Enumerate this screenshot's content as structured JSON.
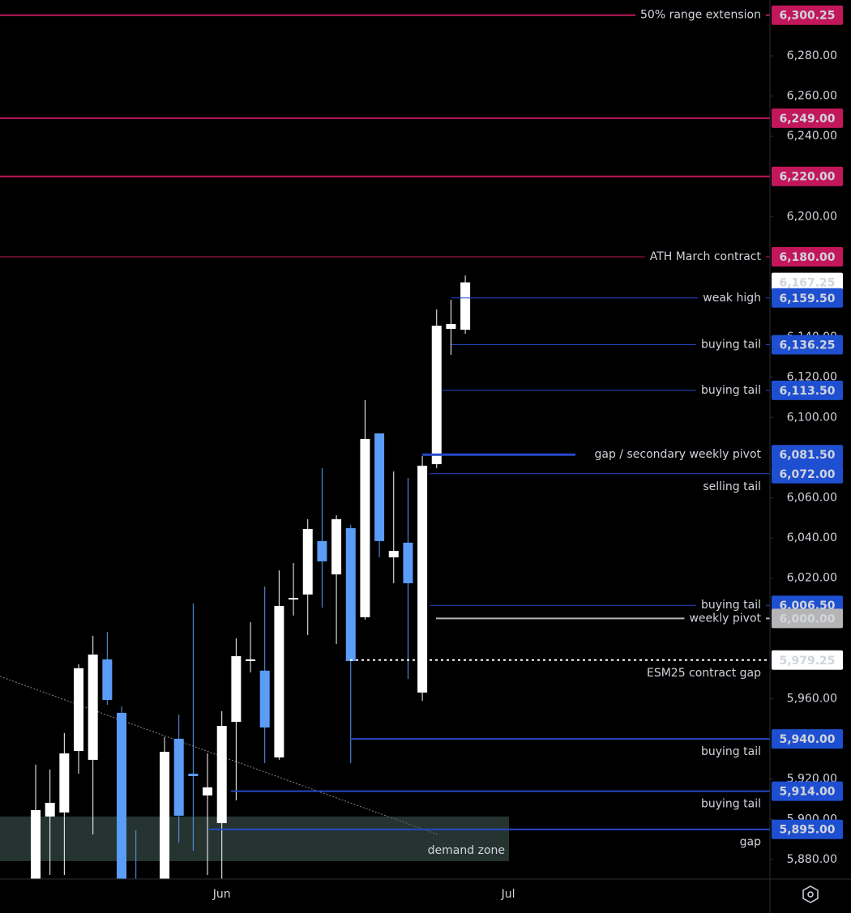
{
  "chart_data": {
    "type": "candlestick",
    "categories": [
      null,
      null,
      null,
      null,
      null,
      null,
      null,
      null,
      null,
      null,
      null,
      null,
      null,
      "Jun",
      null,
      null,
      null,
      null,
      null,
      null,
      null,
      null,
      null,
      null,
      null,
      null,
      null,
      null,
      null,
      null,
      null,
      null,
      null,
      "Jul"
    ],
    "open": [
      5865,
      5901.4,
      5903.4,
      5934.0,
      5929.6,
      5979.6,
      5953.0,
      5870,
      null,
      5860,
      5940.1,
      5922.7,
      5911.9,
      5898.1,
      5948.5,
      5978.8,
      5974.0,
      5930.8,
      6009.4,
      6011.9,
      6038.5,
      6021.9,
      6044.9,
      6000.6,
      6092.1,
      6030.4,
      6037.7,
      5963.1,
      6076.8,
      6144.1,
      6143.7,
      null,
      null,
      null
    ],
    "high": [
      5927.2,
      5924.8,
      5942.9,
      5977.2,
      5991.3,
      5993.3,
      5956.2,
      5894.6,
      null,
      5940.9,
      5952.2,
      6007.4,
      5932.8,
      5953.8,
      5990.1,
      5998.1,
      6015.9,
      6023.9,
      6027.6,
      6049.4,
      6074.8,
      6051.4,
      6046.5,
      6108.6,
      6092.1,
      6073.1,
      6069.9,
      6080.8,
      6153.8,
      6158.6,
      6170.7,
      null,
      null,
      null
    ],
    "low": [
      5850,
      5872.3,
      5872.3,
      5922.7,
      5892.5,
      5957.0,
      5850,
      5850,
      null,
      5850,
      5888.5,
      5884.4,
      5872.3,
      5860,
      5909.4,
      5973.1,
      5928.0,
      5929.6,
      6001.4,
      5991.7,
      6005.4,
      5987.3,
      5928.0,
      5999.4,
      6030.4,
      6017.5,
      5969.9,
      5959.0,
      6074.8,
      6131.2,
      6141.7,
      null,
      null,
      null
    ],
    "close": [
      5904.6,
      5908.2,
      5932.8,
      5975.2,
      5982.0,
      5959.4,
      5860,
      5855,
      null,
      5933.6,
      5901.8,
      5921.5,
      5915.9,
      5946.5,
      5981.2,
      5979.6,
      5945.7,
      6006.2,
      6010.2,
      6044.5,
      6028.4,
      6049.4,
      5978.8,
      6089.3,
      6038.5,
      6033.6,
      6017.5,
      6076.0,
      6145.7,
      6146.5,
      6167.25,
      null,
      null,
      null
    ],
    "up_color": "#ffffff",
    "down_color": "#5b9cf6",
    "ylim": [
      5870.3,
      6307.8
    ],
    "yticks": [
      {
        "value": 6280,
        "label": "6,280.00"
      },
      {
        "value": 6260,
        "label": "6,260.00"
      },
      {
        "value": 6240,
        "label": "6,240.00"
      },
      {
        "value": 6200,
        "label": "6,200.00"
      },
      {
        "value": 6140,
        "label": "6,140.00"
      },
      {
        "value": 6120,
        "label": "6,120.00"
      },
      {
        "value": 6100,
        "label": "6,100.00"
      },
      {
        "value": 6060,
        "label": "6,060.00"
      },
      {
        "value": 6040,
        "label": "6,040.00"
      },
      {
        "value": 6020,
        "label": "6,020.00"
      },
      {
        "value": 5960,
        "label": "5,960.00"
      },
      {
        "value": 5920,
        "label": "5,920.00"
      },
      {
        "value": 5900,
        "label": "5,900.00"
      },
      {
        "value": 5880,
        "label": "5,880.00"
      }
    ],
    "levels": [
      {
        "label": "50% range extension",
        "value": 6300.25,
        "value_label": "6,300.25",
        "color": "#c2185b"
      },
      {
        "value": 6249,
        "value_label": "6,249.00",
        "color": "#c2185b"
      },
      {
        "value": 6220,
        "value_label": "6,220.00",
        "color": "#c2185b"
      },
      {
        "label": "ATH March contract",
        "value": 6180,
        "value_label": "6,180.00",
        "color": "#c2185b"
      },
      {
        "value": 6167.25,
        "value_label": "6,167.25",
        "color": "#ffffff"
      },
      {
        "label": "weak high",
        "value": 6159.5,
        "value_label": "6,159.50",
        "color": "#1e4fd0"
      },
      {
        "label": "buying tail",
        "value": 6136.25,
        "value_label": "6,136.25",
        "color": "#1e4fd0"
      },
      {
        "label": "buying tail",
        "value": 6113.5,
        "value_label": "6,113.50",
        "color": "#1e4fd0"
      },
      {
        "label": "gap / secondary weekly pivot",
        "value": 6081.5,
        "value_label": "6,081.50",
        "color": "#1e4fd0"
      },
      {
        "label": "selling tail",
        "value": 6072,
        "value_label": "6,072.00",
        "color": "#1e4fd0"
      },
      {
        "label": "buying tail",
        "value": 6006.5,
        "value_label": "6,006.50",
        "color": "#1e4fd0"
      },
      {
        "label": "weekly pivot",
        "value": 6000,
        "value_label": "6,000.00",
        "color": "#b5b5b5"
      },
      {
        "label": "ESM25 contract gap",
        "value": 5979.25,
        "value_label": "5,979.25",
        "color": "#ffffff"
      },
      {
        "label": "buying tail",
        "value": 5940,
        "value_label": "5,940.00",
        "color": "#1e4fd0"
      },
      {
        "label": "buying tail",
        "value": 5914,
        "value_label": "5,914.00",
        "color": "#1e4fd0"
      },
      {
        "label": "gap",
        "value": 5895,
        "value_label": "5,895.00",
        "color": "#1e4fd0"
      }
    ],
    "demand_zone": {
      "label": "demand zone",
      "top": 5901.4,
      "bottom": 5879.2
    }
  }
}
